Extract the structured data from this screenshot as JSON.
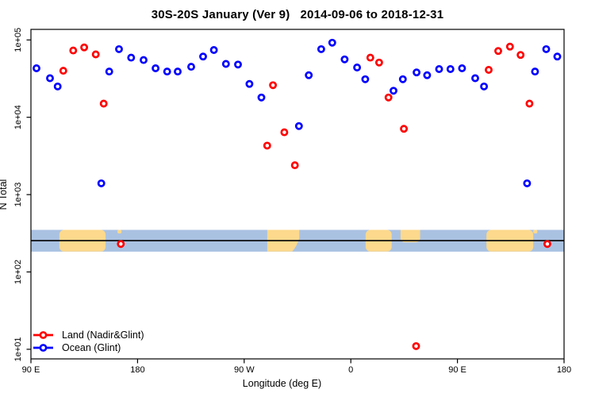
{
  "chart_data": {
    "type": "scatter",
    "title": "30S-20S January (Ver 9)   2014-09-06 to 2018-12-31",
    "xlabel": "Longitude (deg E)",
    "ylabel": "N Total",
    "x_axis": {
      "min_lon_unwrapped": 90,
      "max_lon_unwrapped": 540,
      "ticks": [
        {
          "lon": 90,
          "label": "90 E"
        },
        {
          "lon": 180,
          "label": "180"
        },
        {
          "lon": 270,
          "label": "90 W"
        },
        {
          "lon": 360,
          "label": "0"
        },
        {
          "lon": 450,
          "label": "90 E"
        },
        {
          "lon": 540,
          "label": "180"
        }
      ]
    },
    "y_axis": {
      "scale": "log",
      "ticks": [
        {
          "value": 100000,
          "label": "1e+05"
        },
        {
          "value": 10000,
          "label": "1e+04"
        },
        {
          "value": 1000,
          "label": "1e+03"
        },
        {
          "value": 100,
          "label": "1e+02"
        },
        {
          "value": 10,
          "label": "1e+01"
        }
      ]
    },
    "series": [
      {
        "name": "Land (Nadir&Glint)",
        "color": "#ff0000",
        "points": [
          [
            117.3,
            40000
          ],
          [
            125.7,
            73000
          ],
          [
            134.9,
            80000
          ],
          [
            144.7,
            65000
          ],
          [
            151.4,
            15000
          ],
          [
            165.9,
            230
          ],
          [
            289.4,
            4300
          ],
          [
            294.3,
            26000
          ],
          [
            303.9,
            6400
          ],
          [
            312.8,
            2400
          ],
          [
            376.5,
            59000
          ],
          [
            383.9,
            51000
          ],
          [
            391.8,
            18000
          ],
          [
            404.8,
            7100
          ],
          [
            415.1,
            11
          ],
          [
            476.4,
            41000
          ],
          [
            484.4,
            72000
          ],
          [
            494.3,
            82000
          ],
          [
            503.3,
            64000
          ],
          [
            510.8,
            15000
          ],
          [
            525.9,
            230
          ]
        ]
      },
      {
        "name": "Ocean (Glint)",
        "color": "#0000ff",
        "points": [
          [
            94.7,
            43000
          ],
          [
            106.1,
            32000
          ],
          [
            112.6,
            25000
          ],
          [
            149.4,
            1400
          ],
          [
            156.1,
            39000
          ],
          [
            164.3,
            76000
          ],
          [
            174.6,
            59000
          ],
          [
            185.1,
            55000
          ],
          [
            195.2,
            43000
          ],
          [
            205.0,
            39000
          ],
          [
            213.9,
            39000
          ],
          [
            225.3,
            45000
          ],
          [
            235.3,
            61000
          ],
          [
            244.4,
            74000
          ],
          [
            254.6,
            49000
          ],
          [
            264.8,
            48000
          ],
          [
            274.4,
            27000
          ],
          [
            284.5,
            18000
          ],
          [
            316.2,
            7700
          ],
          [
            324.5,
            35000
          ],
          [
            335.0,
            76000
          ],
          [
            344.3,
            92000
          ],
          [
            354.8,
            56000
          ],
          [
            365.3,
            44000
          ],
          [
            372.2,
            31000
          ],
          [
            396.0,
            22000
          ],
          [
            403.9,
            31000
          ],
          [
            415.5,
            38000
          ],
          [
            424.4,
            35000
          ],
          [
            434.5,
            42000
          ],
          [
            444.1,
            42000
          ],
          [
            453.9,
            43000
          ],
          [
            465.0,
            32000
          ],
          [
            472.4,
            25000
          ],
          [
            508.8,
            1400
          ],
          [
            515.5,
            39000
          ],
          [
            524.9,
            76000
          ],
          [
            534.3,
            61000
          ]
        ]
      }
    ],
    "map_band": {
      "description": "land/ocean strip vs longitude",
      "ocean_color": "#aac2e2",
      "land_color": "#fcd98c",
      "line_color": "#000000",
      "top_value": 350,
      "bottom_value": 183,
      "line_value": 254,
      "land_regions": [
        {
          "from": 114.0,
          "to": 153.0,
          "part": "full"
        },
        {
          "from": 163.0,
          "to": 166.5,
          "part": "speck"
        },
        {
          "from": 289.5,
          "to": 316.5,
          "part": "taper"
        },
        {
          "from": 372.5,
          "to": 394.5,
          "part": "full"
        },
        {
          "from": 402.0,
          "to": 418.5,
          "part": "top"
        },
        {
          "from": 474.5,
          "to": 514.0,
          "part": "full"
        },
        {
          "from": 514.0,
          "to": 517.5,
          "part": "speck"
        }
      ]
    },
    "legend": {
      "items": [
        {
          "label": "Land (Nadir&Glint)",
          "color": "#ff0000"
        },
        {
          "label": "Ocean (Glint)",
          "color": "#0000ff"
        }
      ]
    }
  }
}
